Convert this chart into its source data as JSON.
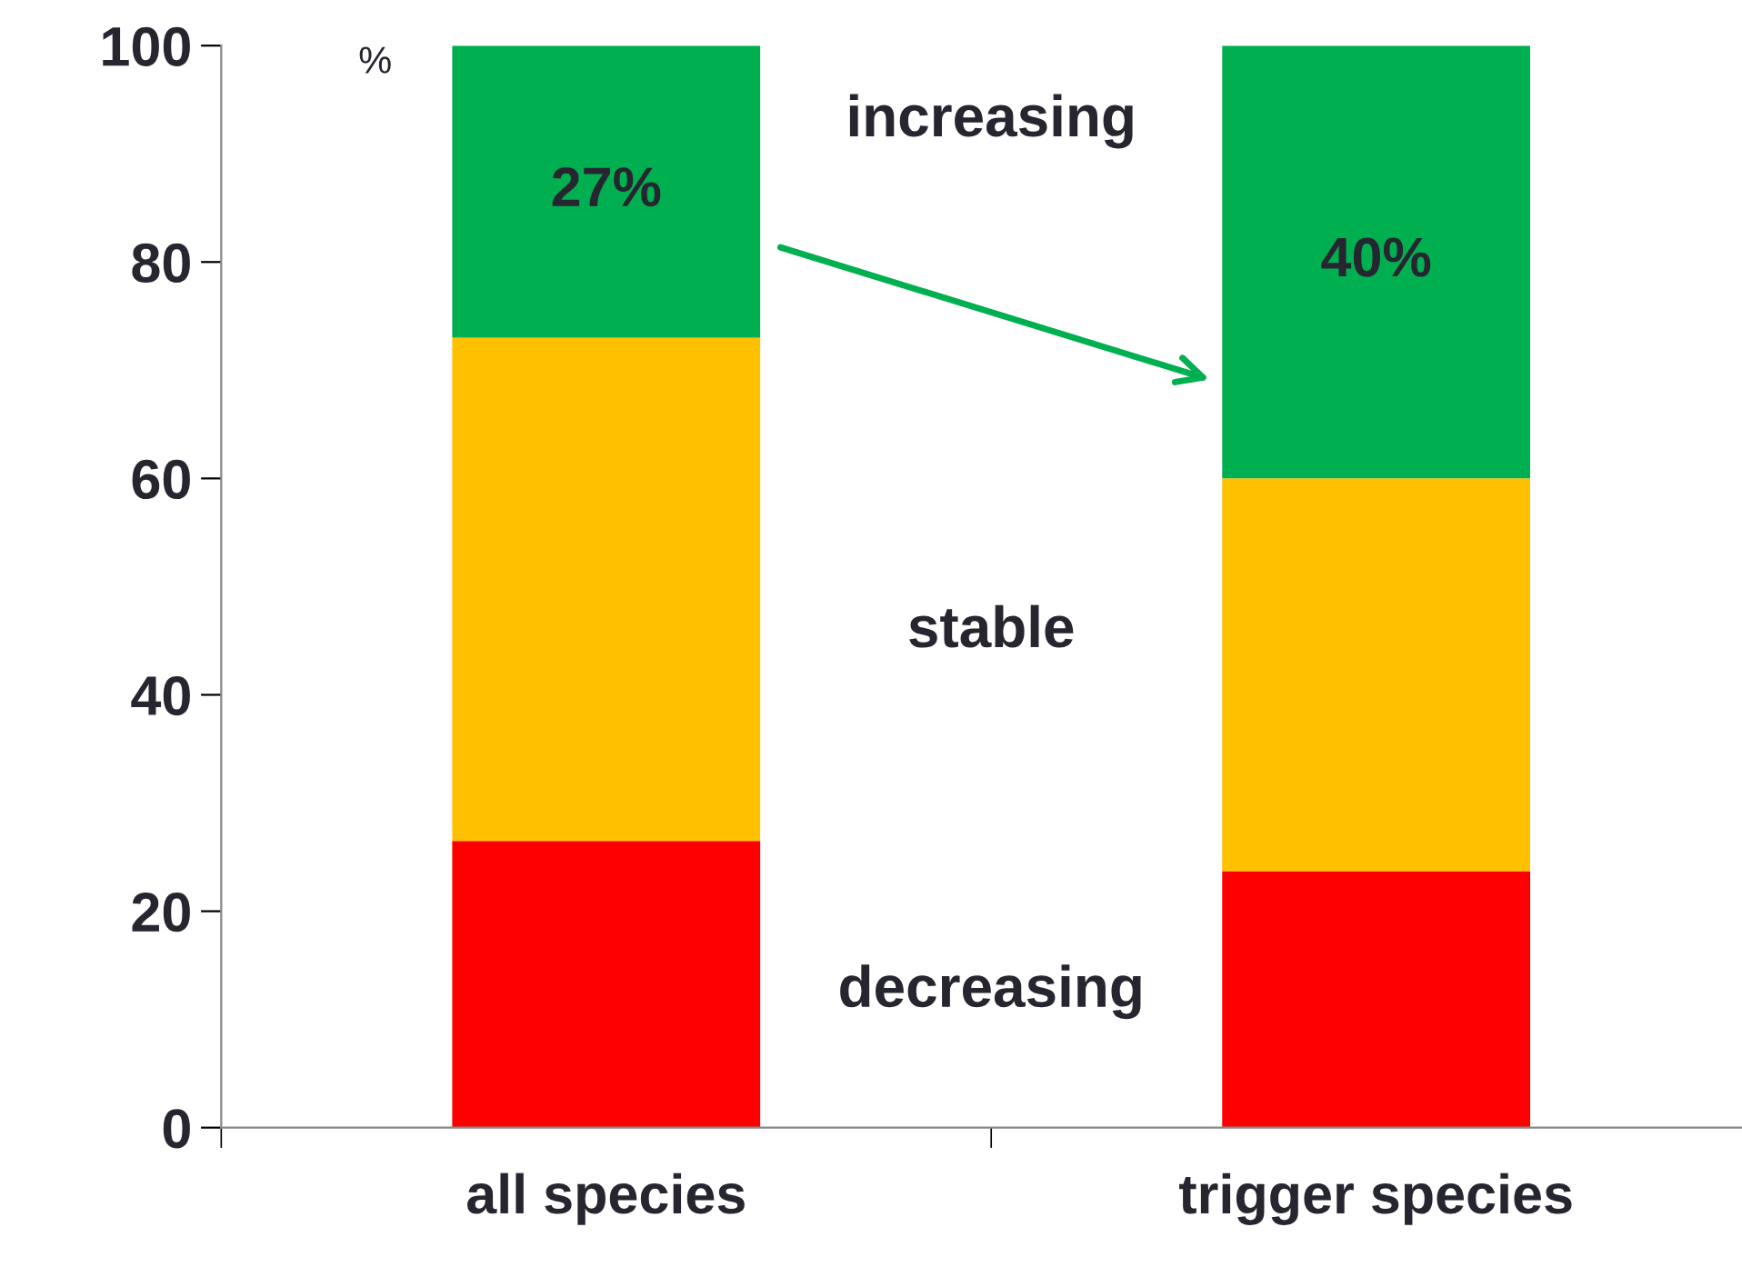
{
  "chart_data": {
    "type": "bar",
    "stacked": true,
    "ylabel": "%",
    "categories": [
      "all species",
      "trigger species"
    ],
    "series": [
      {
        "name": "decreasing",
        "color": "#ff0000",
        "values": [
          26.5,
          23.7
        ]
      },
      {
        "name": "stable",
        "color": "#ffc000",
        "values": [
          46.5,
          36.3
        ]
      },
      {
        "name": "increasing",
        "color": "#00b050",
        "values": [
          27,
          40
        ],
        "value_labels": [
          "27%",
          "40%"
        ]
      }
    ],
    "ylim": [
      0,
      100
    ],
    "yticks": [
      0,
      20,
      40,
      60,
      80,
      100
    ],
    "grid": false,
    "legend": false
  }
}
